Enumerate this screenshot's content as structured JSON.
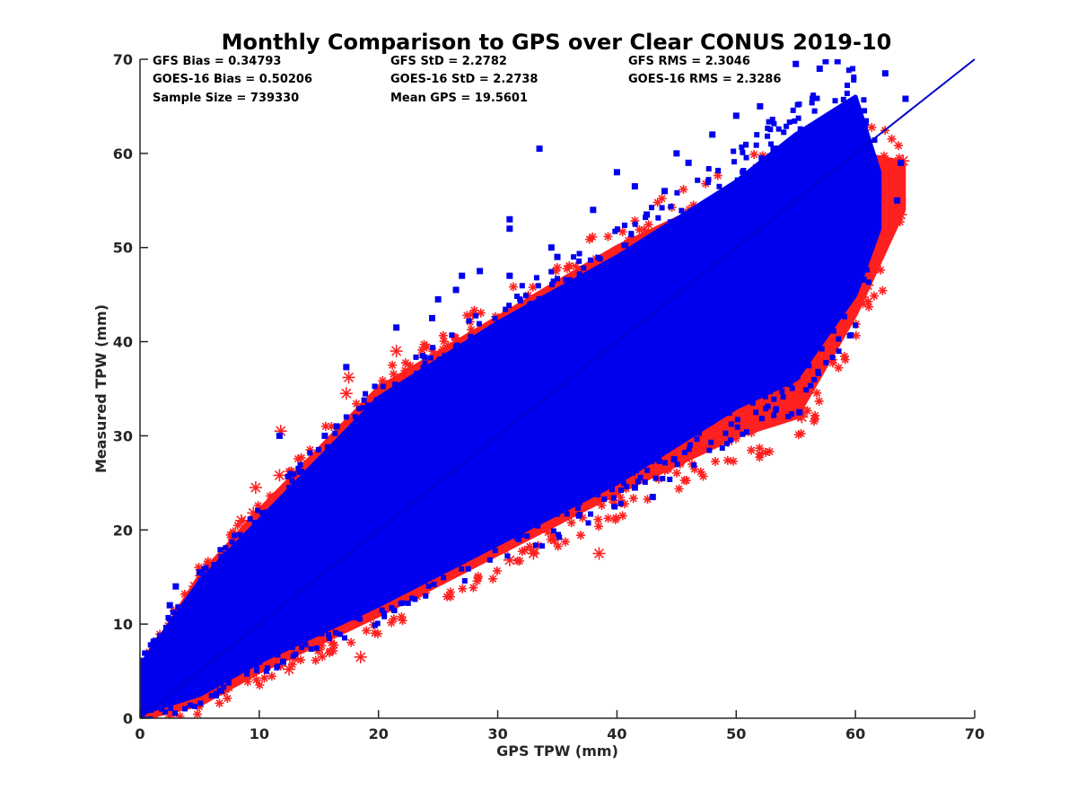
{
  "chart_data": {
    "type": "scatter",
    "title": "Monthly Comparison to GPS over Clear CONUS 2019-10",
    "xlabel": "GPS TPW (mm)",
    "ylabel": "Measured TPW (mm)",
    "xlim": [
      0,
      70
    ],
    "ylim": [
      0,
      70
    ],
    "xticks": [
      "0",
      "10",
      "20",
      "30",
      "40",
      "50",
      "60",
      "70"
    ],
    "yticks": [
      "0",
      "10",
      "20",
      "30",
      "40",
      "50",
      "60",
      "70"
    ],
    "grid": false,
    "reference_line": {
      "x": [
        0,
        70
      ],
      "y": [
        0,
        70
      ],
      "color": "#0000cc"
    },
    "stats": [
      {
        "text": "GFS Bias = 0.34793"
      },
      {
        "text": "GOES-16 Bias = 0.50206"
      },
      {
        "text": "Sample Size = 739330"
      },
      {
        "text": "GFS StD = 2.2782"
      },
      {
        "text": "GOES-16 StD = 2.2738"
      },
      {
        "text": "Mean GPS = 19.5601"
      },
      {
        "text": "GFS RMS = 2.3046"
      },
      {
        "text": "GOES-16 RMS = 2.3286"
      }
    ],
    "series": [
      {
        "marker": "asterisk",
        "color": "#ff2020",
        "band_lower": [
          [
            0,
            0
          ],
          [
            5,
            1.5
          ],
          [
            10,
            5
          ],
          [
            20,
            11
          ],
          [
            30,
            17.5
          ],
          [
            40,
            24
          ],
          [
            50,
            30
          ],
          [
            55,
            32
          ],
          [
            60,
            43
          ],
          [
            64,
            54
          ]
        ],
        "band_upper": [
          [
            0,
            5
          ],
          [
            5,
            15
          ],
          [
            10,
            22
          ],
          [
            20,
            35
          ],
          [
            30,
            42.5
          ],
          [
            40,
            50
          ],
          [
            50,
            56
          ],
          [
            60,
            60
          ],
          [
            64,
            59
          ]
        ],
        "outliers": [
          [
            64,
            59.2
          ],
          [
            63.6,
            54.5
          ],
          [
            63.8,
            53.5
          ],
          [
            61,
            46
          ],
          [
            59.6,
            43
          ],
          [
            58,
            40
          ],
          [
            55.5,
            32
          ],
          [
            55.4,
            33
          ],
          [
            50.8,
            33
          ],
          [
            49.3,
            29.5
          ],
          [
            47.5,
            30
          ],
          [
            45,
            28
          ],
          [
            41,
            25
          ],
          [
            38.5,
            17.5
          ],
          [
            33,
            17.5
          ],
          [
            31,
            16.8
          ],
          [
            12.5,
            5.2
          ],
          [
            9.7,
            24.5
          ],
          [
            9.5,
            21.8
          ],
          [
            11.7,
            25.8
          ],
          [
            11.8,
            30.5
          ],
          [
            17.5,
            36.2
          ],
          [
            17.3,
            34.5
          ],
          [
            21.5,
            39
          ],
          [
            20,
            30.5
          ],
          [
            4.6,
            14
          ],
          [
            6.2,
            15.5
          ],
          [
            8.5,
            21
          ],
          [
            18.5,
            6.5
          ],
          [
            60,
            50
          ],
          [
            61.5,
            55.5
          ],
          [
            62.5,
            56
          ],
          [
            57,
            47
          ],
          [
            56.8,
            38
          ],
          [
            52,
            39
          ],
          [
            53,
            36
          ],
          [
            43,
            27
          ],
          [
            35,
            42.5
          ],
          [
            24.5,
            36
          ]
        ]
      },
      {
        "marker": "square",
        "color": "#0000ee",
        "band_lower": [
          [
            0,
            0.5
          ],
          [
            5,
            2.5
          ],
          [
            10,
            6
          ],
          [
            20,
            12
          ],
          [
            30,
            18.5
          ],
          [
            40,
            25
          ],
          [
            50,
            33
          ],
          [
            55,
            36
          ],
          [
            60,
            45
          ],
          [
            62,
            52
          ]
        ],
        "band_upper": [
          [
            0,
            5.5
          ],
          [
            5,
            14.5
          ],
          [
            10,
            21
          ],
          [
            20,
            34
          ],
          [
            30,
            42
          ],
          [
            40,
            49
          ],
          [
            50,
            57
          ],
          [
            55,
            62
          ],
          [
            60,
            66
          ],
          [
            62,
            58
          ]
        ],
        "outliers": [
          [
            33.5,
            60.5
          ],
          [
            26.5,
            45.5
          ],
          [
            24.5,
            42.5
          ],
          [
            21.5,
            41.5
          ],
          [
            31,
            53
          ],
          [
            31,
            52
          ],
          [
            34.5,
            50
          ],
          [
            35,
            49
          ],
          [
            31,
            47
          ],
          [
            36,
            46.5
          ],
          [
            33.5,
            44.5
          ],
          [
            55,
            69.5
          ],
          [
            57.5,
            69.8
          ],
          [
            58.5,
            69.8
          ],
          [
            57,
            69
          ],
          [
            62.5,
            68.5
          ],
          [
            64.2,
            65.8
          ],
          [
            63.8,
            59
          ],
          [
            63.5,
            55
          ],
          [
            17.3,
            37.3
          ],
          [
            11.7,
            30
          ],
          [
            15.5,
            30
          ],
          [
            16.5,
            31
          ],
          [
            43,
            23.5
          ],
          [
            41.5,
            24.5
          ],
          [
            12,
            6
          ],
          [
            10,
            6
          ],
          [
            8.5,
            5.5
          ],
          [
            44.8,
            27.5
          ],
          [
            52.3,
            37.2
          ],
          [
            55.3,
            32.5
          ],
          [
            54.5,
            35.5
          ],
          [
            29.5,
            37
          ],
          [
            40,
            58
          ],
          [
            41.5,
            56.5
          ],
          [
            42.5,
            53.5
          ],
          [
            3,
            14
          ],
          [
            5,
            15.5
          ],
          [
            7.5,
            17.5
          ],
          [
            2.5,
            12
          ],
          [
            25,
            44.5
          ],
          [
            27,
            47
          ],
          [
            28.5,
            47.5
          ],
          [
            46,
            59
          ],
          [
            48,
            62
          ],
          [
            50,
            64
          ],
          [
            52,
            65
          ],
          [
            44,
            56
          ],
          [
            45,
            60
          ],
          [
            38,
            54
          ]
        ]
      }
    ]
  }
}
